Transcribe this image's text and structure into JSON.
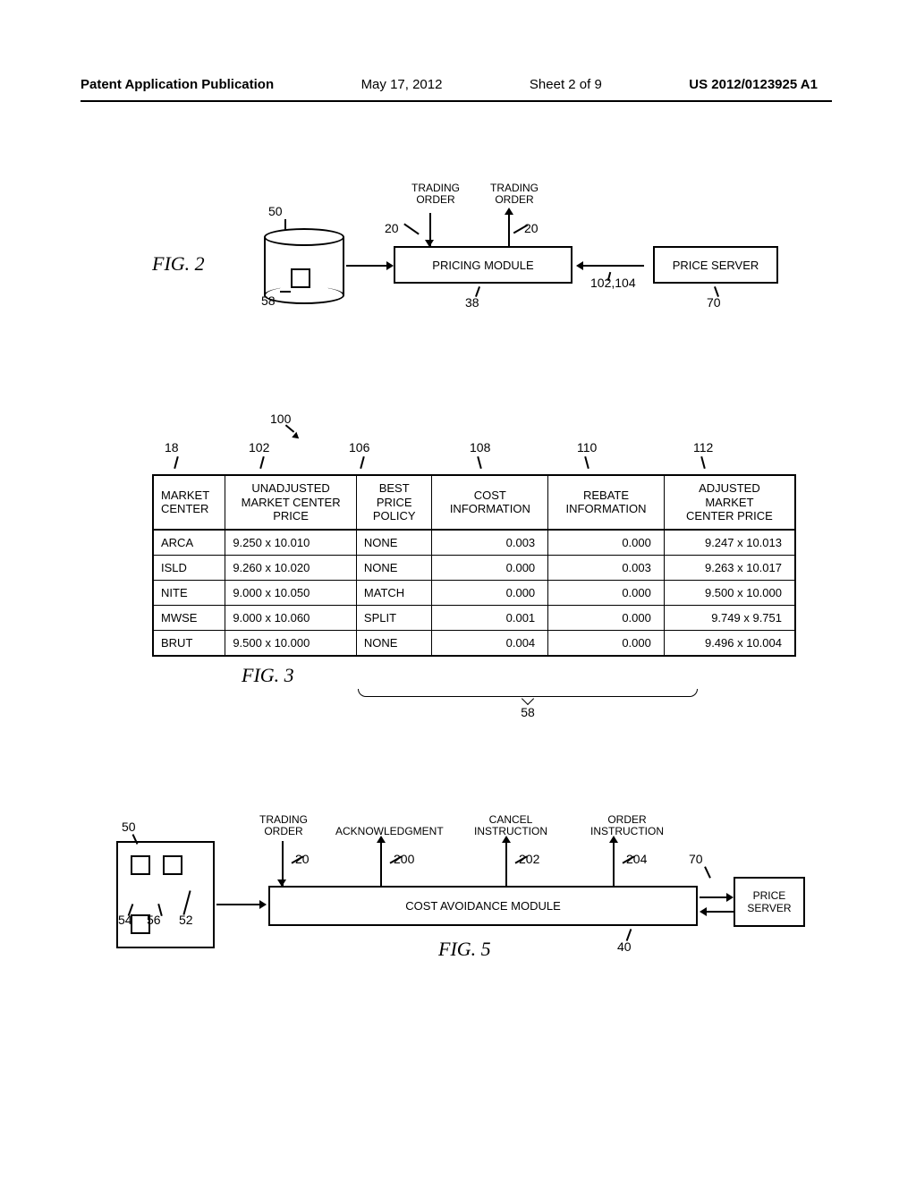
{
  "header": {
    "publication": "Patent Application Publication",
    "date": "May 17, 2012",
    "sheet": "Sheet 2 of 9",
    "docnum": "US 2012/0123925 A1"
  },
  "fig2": {
    "label": "FIG. 2",
    "ref50": "50",
    "ref58": "58",
    "ref20a": "20",
    "ref20b": "20",
    "ref38": "38",
    "ref102_104": "102,104",
    "ref70": "70",
    "trading_order_a": "TRADING\nORDER",
    "trading_order_b": "TRADING\nORDER",
    "pricing_module": "PRICING MODULE",
    "price_server": "PRICE SERVER"
  },
  "fig3": {
    "ref100": "100",
    "col_refs": [
      "18",
      "102",
      "106",
      "108",
      "110",
      "112"
    ],
    "headers": [
      "MARKET\nCENTER",
      "UNADJUSTED\nMARKET CENTER\nPRICE",
      "BEST\nPRICE\nPOLICY",
      "COST\nINFORMATION",
      "REBATE\nINFORMATION",
      "ADJUSTED\nMARKET\nCENTER PRICE"
    ],
    "rows": [
      [
        "ARCA",
        "9.250 x 10.010",
        "NONE",
        "0.003",
        "0.000",
        "9.247 x 10.013"
      ],
      [
        "ISLD",
        "9.260 x 10.020",
        "NONE",
        "0.000",
        "0.003",
        "9.263 x 10.017"
      ],
      [
        "NITE",
        "9.000 x 10.050",
        "MATCH",
        "0.000",
        "0.000",
        "9.500 x 10.000"
      ],
      [
        "MWSE",
        "9.000 x 10.060",
        "SPLIT",
        "0.001",
        "0.000",
        "9.749 x 9.751"
      ],
      [
        "BRUT",
        "9.500 x 10.000",
        "NONE",
        "0.004",
        "0.000",
        "9.496 x 10.004"
      ]
    ],
    "label": "FIG. 3",
    "ref58": "58"
  },
  "fig5": {
    "ref50": "50",
    "ref54": "54",
    "ref56": "56",
    "ref52": "52",
    "ref20": "20",
    "ref200": "200",
    "ref202": "202",
    "ref204": "204",
    "ref70": "70",
    "ref40": "40",
    "trading_order": "TRADING\nORDER",
    "acknowledgment": "ACKNOWLEDGMENT",
    "cancel_instruction": "CANCEL\nINSTRUCTION",
    "order_instruction": "ORDER\nINSTRUCTION",
    "cost_avoidance": "COST AVOIDANCE MODULE",
    "price_server": "PRICE\nSERVER",
    "label": "FIG. 5"
  }
}
